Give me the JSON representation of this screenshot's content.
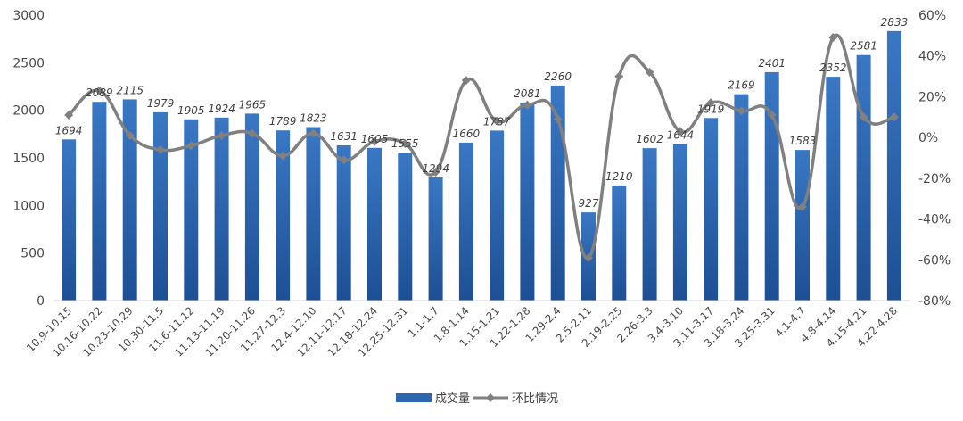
{
  "chart_data": {
    "type": "bar",
    "categories": [
      "10.9-10.15",
      "10.16-10.22",
      "10.23-10.29",
      "10.30-11.5",
      "11.6-11.12",
      "11.13-11.19",
      "11.20-11.26",
      "11.27-12.3",
      "12.4-12.10",
      "12.11-12.17",
      "12.18-12.24",
      "12.25-12.31",
      "1.1-1.7",
      "1.8-1.14",
      "1.15-1.21",
      "1.22-1.28",
      "1.29-2.4",
      "2.5-2.11",
      "2.19-2.25",
      "2.26-3.3",
      "3.4-3.10",
      "3.11-3.17",
      "3.18-3.24",
      "3.25-3.31",
      "4.1-4.7",
      "4.8-4.14",
      "4.15-4.21",
      "4.22-4.28"
    ],
    "series": [
      {
        "name": "成交量",
        "type": "bar",
        "axis": "left",
        "color": "#2e67b1",
        "values": [
          1694,
          2089,
          2115,
          1979,
          1905,
          1924,
          1965,
          1789,
          1823,
          1631,
          1605,
          1555,
          1294,
          1660,
          1787,
          2081,
          2260,
          927,
          1210,
          1602,
          1644,
          1919,
          2169,
          2401,
          1583,
          2352,
          2581,
          2833
        ]
      },
      {
        "name": "环比情况",
        "type": "line",
        "axis": "right",
        "color": "#808080",
        "values": [
          11,
          23,
          1,
          -6,
          -4,
          1,
          2,
          -9,
          2,
          -11,
          -2,
          -3,
          -17,
          28,
          8,
          16,
          9,
          -59,
          30,
          32,
          3,
          17,
          13,
          11,
          -34,
          49,
          10,
          10
        ]
      }
    ],
    "y_left": {
      "ylim": [
        0,
        3000
      ],
      "ticks": [
        "0",
        "500",
        "1000",
        "1500",
        "2000",
        "2500",
        "3000"
      ],
      "tick_values": [
        0,
        500,
        1000,
        1500,
        2000,
        2500,
        3000
      ]
    },
    "y_right": {
      "ylim": [
        -80,
        60
      ],
      "ticks": [
        "-80%",
        "-60%",
        "-40%",
        "-20%",
        "0%",
        "20%",
        "40%",
        "60%"
      ],
      "tick_values": [
        -80,
        -60,
        -40,
        -20,
        0,
        20,
        40,
        60
      ]
    },
    "grid": false,
    "legend_position": "bottom-center"
  },
  "legend": {
    "bar_label": "成交量",
    "line_label": "环比情况"
  }
}
